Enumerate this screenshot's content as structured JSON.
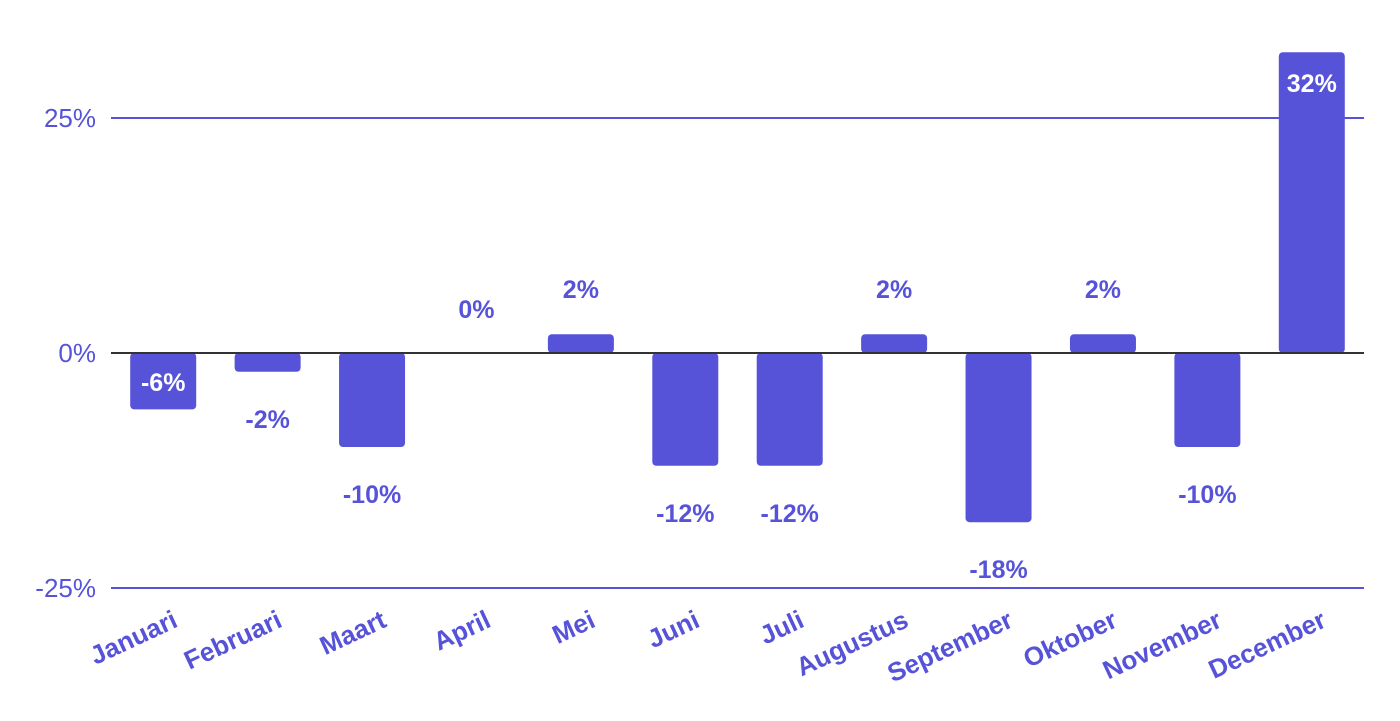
{
  "chart_data": {
    "type": "bar",
    "title": "",
    "xlabel": "",
    "ylabel": "",
    "categories": [
      "Januari",
      "Februari",
      "Maart",
      "April",
      "Mei",
      "Juni",
      "Juli",
      "Augustus",
      "September",
      "Oktober",
      "November",
      "December"
    ],
    "values": [
      -6,
      -2,
      -10,
      0,
      2,
      -12,
      -12,
      2,
      -18,
      2,
      -10,
      32
    ],
    "data_labels": [
      "-6%",
      "-2%",
      "-10%",
      "0%",
      "2%",
      "-12%",
      "-12%",
      "2%",
      "-18%",
      "2%",
      "-10%",
      "32%"
    ],
    "y_ticks": [
      -25,
      0,
      25
    ],
    "y_tick_labels": [
      "-25%",
      "0%",
      "25%"
    ],
    "ylim": [
      -25,
      32
    ],
    "grid": true,
    "legend": "none",
    "colors": {
      "bar": "#5753d9",
      "text": "#5753d9",
      "gridline": "#5753d9",
      "zero_line": "#333333",
      "label_inside": "#ffffff"
    }
  }
}
